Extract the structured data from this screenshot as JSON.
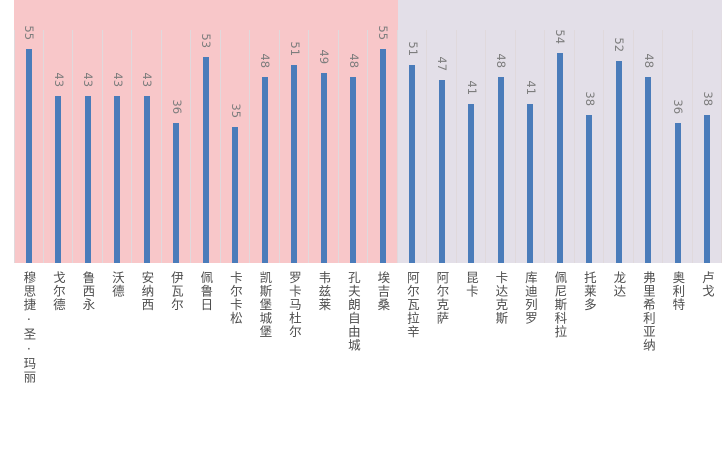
{
  "chart_data": {
    "type": "bar",
    "title": "",
    "xlabel": "",
    "ylabel": "",
    "categories": [
      "穆思捷·圣·玛丽",
      "戈尔德",
      "鲁西永",
      "沃德",
      "安纳西",
      "伊瓦尔",
      "佩鲁日",
      "卡尔卡松",
      "凯斯堡城堡",
      "罗卡马杜尔",
      "韦兹莱",
      "孔夫朗自由城",
      "埃吉桑",
      "阿尔瓦拉辛",
      "阿尔克萨",
      "昆卡",
      "卡达克斯",
      "库迪列罗",
      "佩尼斯科拉",
      "托莱多",
      "龙达",
      "弗里希利亚纳",
      "奥利特",
      "卢戈"
    ],
    "values": [
      55,
      43,
      43,
      43,
      43,
      36,
      53,
      35,
      48,
      51,
      49,
      48,
      55,
      51,
      47,
      41,
      48,
      41,
      54,
      38,
      52,
      48,
      36,
      38
    ],
    "data_labels_shown": true,
    "y_axis_shown": false,
    "y_axis_max_implied": 60,
    "grid": "vertical-category-gridlines",
    "legend_position": "none",
    "background_regions": [
      {
        "name": "left-pink-region",
        "color": "#f8c7c9",
        "category_count": 13
      },
      {
        "name": "right-lavender-region",
        "color": "#e3dfe8",
        "category_count": 11
      }
    ],
    "colors": {
      "bar": "#4a7cba",
      "gridline": "#e0d9dc",
      "value_label": "#7d7d7d",
      "category_label": "#4d4d4d",
      "page_background": "#ffffff"
    }
  }
}
